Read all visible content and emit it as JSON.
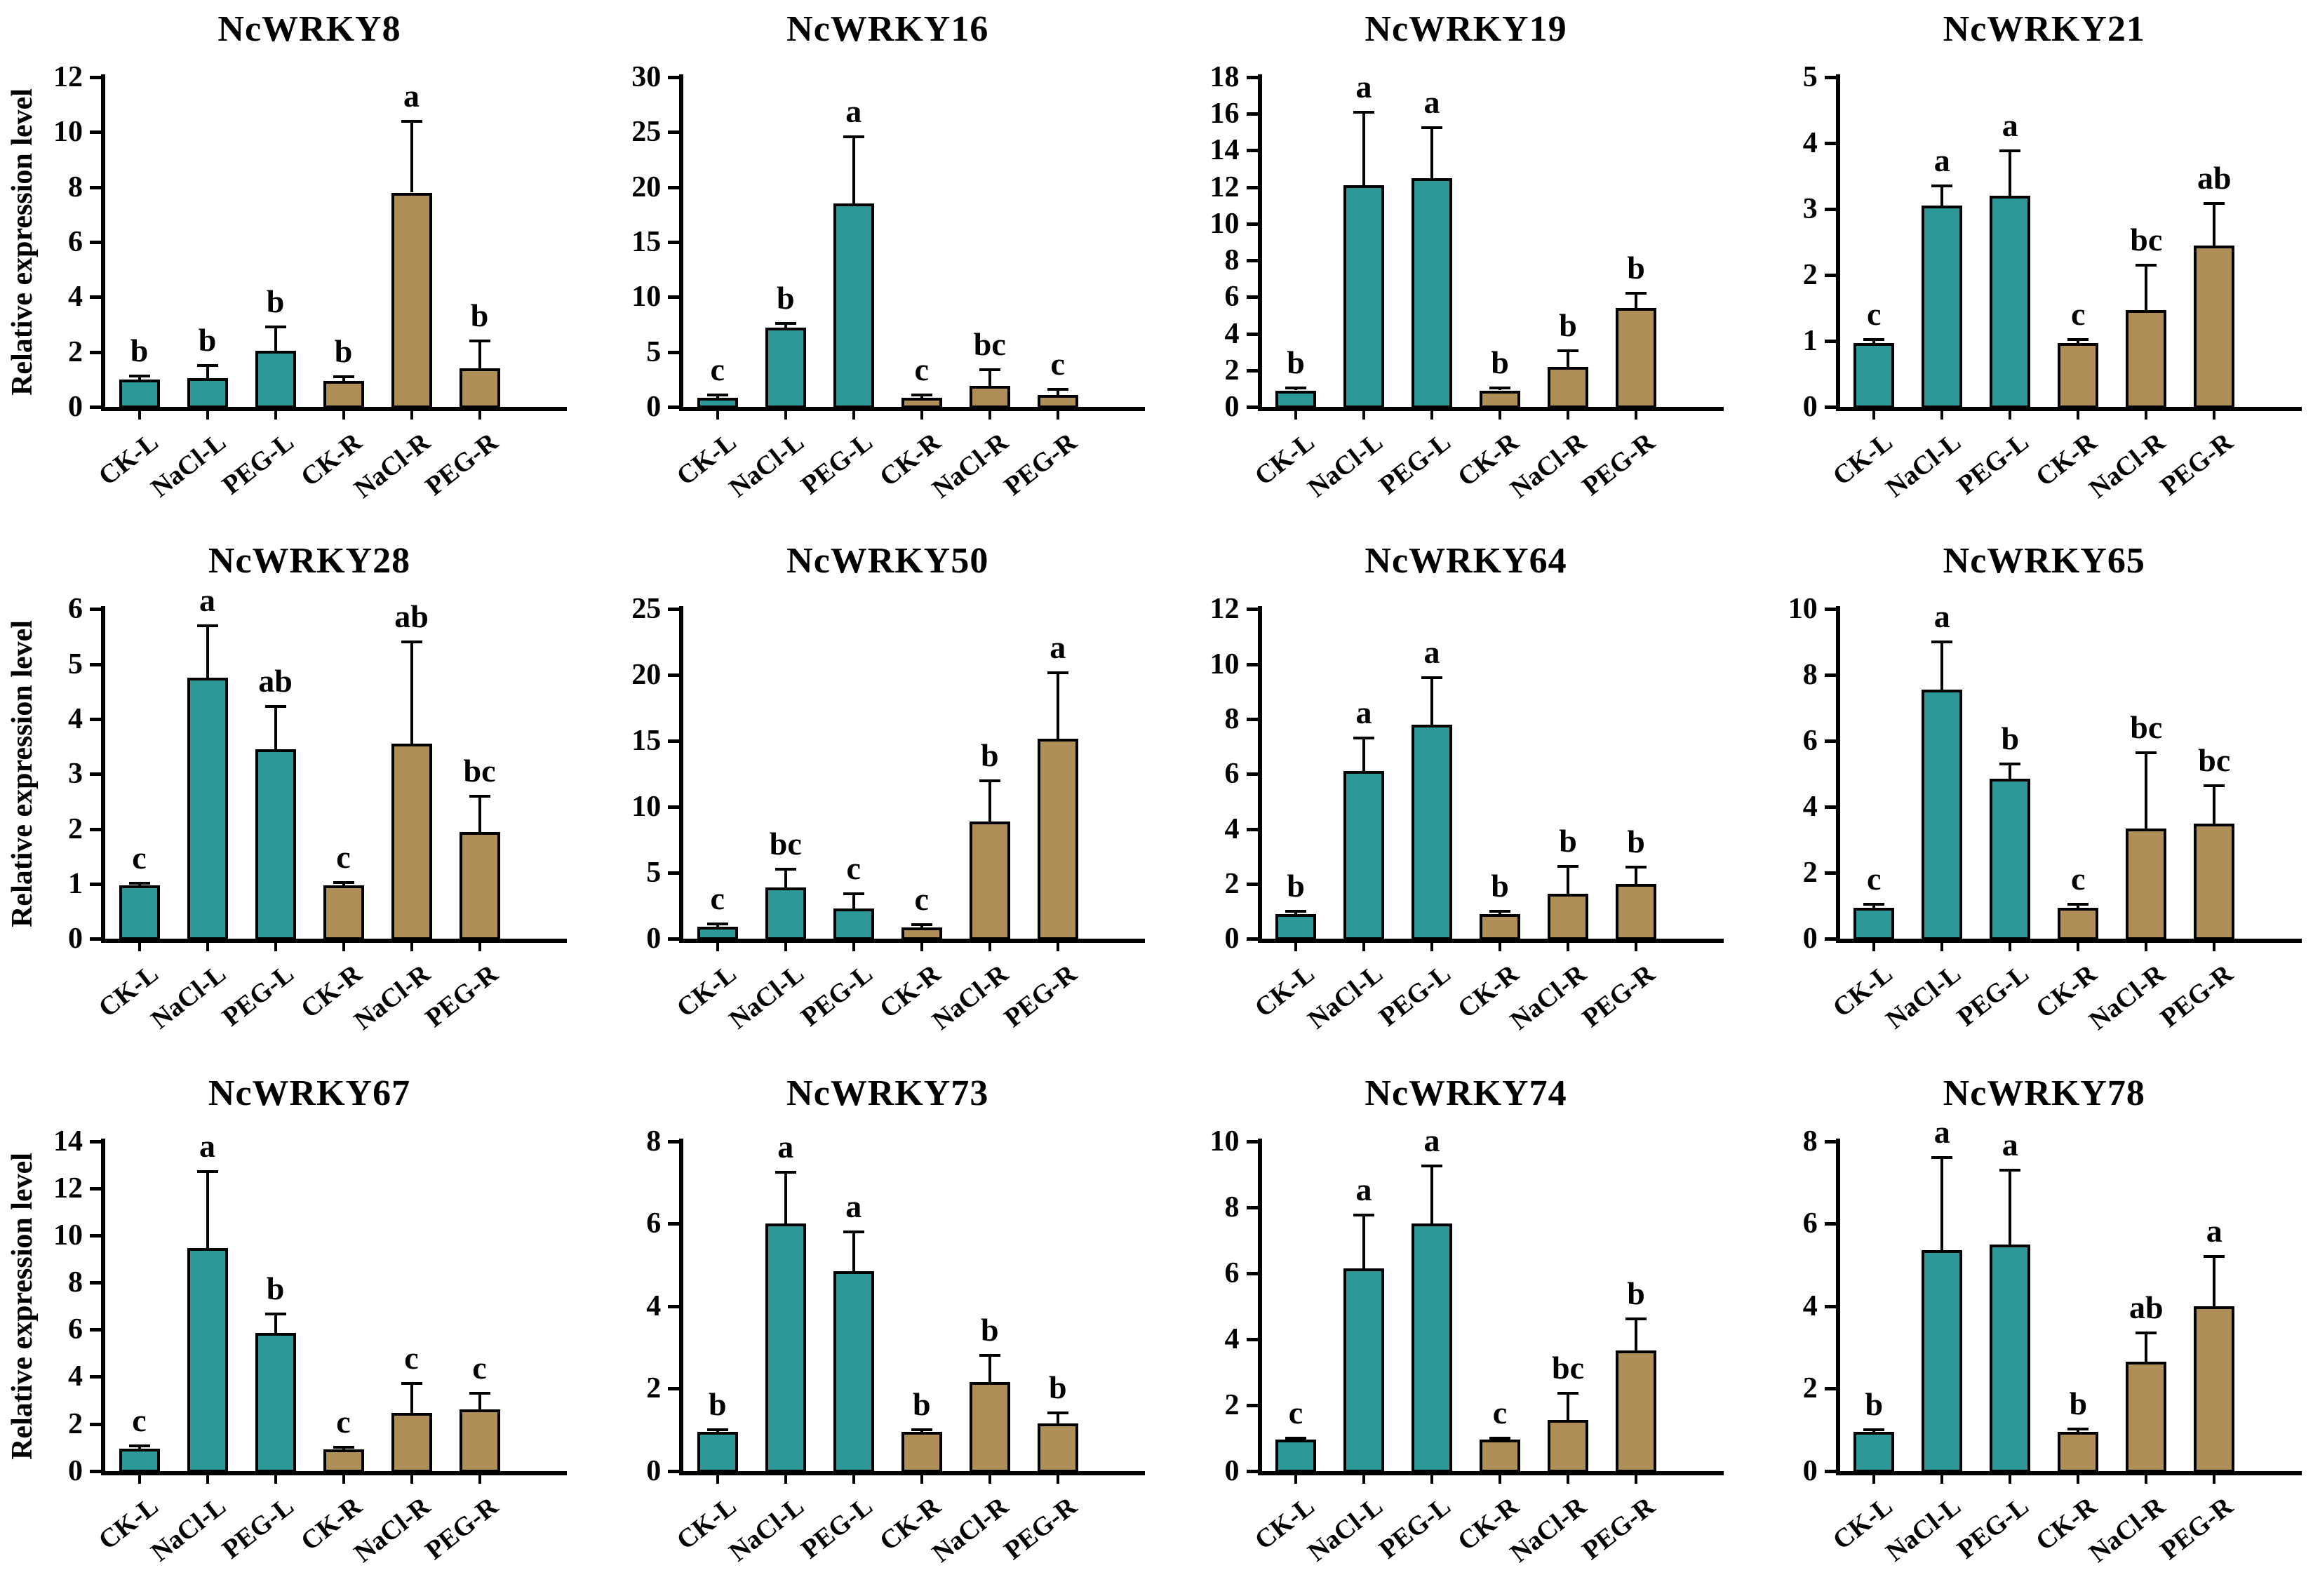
{
  "figure": {
    "y_axis_label": "Relative expression level",
    "categories": [
      "CK-L",
      "NaCl-L",
      "PEG-L",
      "CK-R",
      "NaCl-R",
      "PEG-R"
    ],
    "colors": {
      "leaf_bar": "#2E9898",
      "root_bar": "#B08E58",
      "axis": "#000000",
      "background": "#FFFFFF"
    },
    "bar_groups": [
      "leaf",
      "leaf",
      "leaf",
      "root",
      "root",
      "root"
    ],
    "legend": "none",
    "grid_lines": "off"
  },
  "chart_data": [
    {
      "type": "bar",
      "title": "NcWRKY8",
      "ylim": [
        0,
        12
      ],
      "yticks": [
        0,
        2,
        4,
        6,
        8,
        10,
        12
      ],
      "show_ylabel": true,
      "xlabel": "",
      "ylabel": "Relative expression level",
      "categories": [
        "CK-L",
        "NaCl-L",
        "PEG-L",
        "CK-R",
        "NaCl-R",
        "PEG-R"
      ],
      "values": [
        1.0,
        1.05,
        2.05,
        0.95,
        7.8,
        1.4
      ],
      "errors": [
        0.12,
        0.45,
        0.85,
        0.15,
        2.6,
        1.0
      ],
      "letters": [
        "b",
        "b",
        "b",
        "b",
        "a",
        "b"
      ]
    },
    {
      "type": "bar",
      "title": "NcWRKY16",
      "ylim": [
        0,
        30
      ],
      "yticks": [
        0,
        5,
        10,
        15,
        20,
        25,
        30
      ],
      "show_ylabel": false,
      "xlabel": "",
      "ylabel": "",
      "categories": [
        "CK-L",
        "NaCl-L",
        "PEG-L",
        "CK-R",
        "NaCl-R",
        "PEG-R"
      ],
      "values": [
        0.8,
        7.2,
        18.5,
        0.8,
        1.9,
        1.1
      ],
      "errors": [
        0.3,
        0.4,
        6.1,
        0.3,
        1.5,
        0.5
      ],
      "letters": [
        "c",
        "b",
        "a",
        "c",
        "bc",
        "c"
      ]
    },
    {
      "type": "bar",
      "title": "NcWRKY19",
      "ylim": [
        0,
        18
      ],
      "yticks": [
        0,
        2,
        4,
        6,
        8,
        10,
        12,
        14,
        16,
        18
      ],
      "show_ylabel": false,
      "xlabel": "",
      "ylabel": "",
      "categories": [
        "CK-L",
        "NaCl-L",
        "PEG-L",
        "CK-R",
        "NaCl-R",
        "PEG-R"
      ],
      "values": [
        0.9,
        12.1,
        12.5,
        0.9,
        2.2,
        5.4
      ],
      "errors": [
        0.15,
        4.0,
        2.75,
        0.12,
        0.85,
        0.8
      ],
      "letters": [
        "b",
        "a",
        "a",
        "b",
        "b",
        "b"
      ]
    },
    {
      "type": "bar",
      "title": "NcWRKY21",
      "ylim": [
        0,
        5
      ],
      "yticks": [
        0,
        1,
        2,
        3,
        4,
        5
      ],
      "show_ylabel": false,
      "xlabel": "",
      "ylabel": "",
      "categories": [
        "CK-L",
        "NaCl-L",
        "PEG-L",
        "CK-R",
        "NaCl-R",
        "PEG-R"
      ],
      "values": [
        0.97,
        3.05,
        3.2,
        0.97,
        1.47,
        2.45
      ],
      "errors": [
        0.05,
        0.3,
        0.68,
        0.05,
        0.68,
        0.63
      ],
      "letters": [
        "c",
        "a",
        "a",
        "c",
        "bc",
        "ab"
      ]
    },
    {
      "type": "bar",
      "title": "NcWRKY28",
      "ylim": [
        0,
        6
      ],
      "yticks": [
        0,
        1,
        2,
        3,
        4,
        5,
        6
      ],
      "show_ylabel": true,
      "xlabel": "",
      "ylabel": "Relative expression level",
      "categories": [
        "CK-L",
        "NaCl-L",
        "PEG-L",
        "CK-R",
        "NaCl-R",
        "PEG-R"
      ],
      "values": [
        0.97,
        4.75,
        3.45,
        0.97,
        3.55,
        1.95
      ],
      "errors": [
        0.04,
        0.95,
        0.78,
        0.05,
        1.85,
        0.65
      ],
      "letters": [
        "c",
        "a",
        "ab",
        "c",
        "ab",
        "bc"
      ]
    },
    {
      "type": "bar",
      "title": "NcWRKY50",
      "ylim": [
        0,
        25
      ],
      "yticks": [
        0,
        5,
        10,
        15,
        20,
        25
      ],
      "show_ylabel": false,
      "xlabel": "",
      "ylabel": "",
      "categories": [
        "CK-L",
        "NaCl-L",
        "PEG-L",
        "CK-R",
        "NaCl-R",
        "PEG-R"
      ],
      "values": [
        0.9,
        3.9,
        2.3,
        0.85,
        8.9,
        15.2
      ],
      "errors": [
        0.25,
        1.4,
        1.1,
        0.25,
        3.1,
        5.0
      ],
      "letters": [
        "c",
        "bc",
        "c",
        "c",
        "b",
        "a"
      ]
    },
    {
      "type": "bar",
      "title": "NcWRKY64",
      "ylim": [
        0,
        12
      ],
      "yticks": [
        0,
        2,
        4,
        6,
        8,
        10,
        12
      ],
      "show_ylabel": false,
      "xlabel": "",
      "ylabel": "",
      "categories": [
        "CK-L",
        "NaCl-L",
        "PEG-L",
        "CK-R",
        "NaCl-R",
        "PEG-R"
      ],
      "values": [
        0.9,
        6.1,
        7.8,
        0.9,
        1.65,
        2.0
      ],
      "errors": [
        0.1,
        1.2,
        1.7,
        0.1,
        1.0,
        0.6
      ],
      "letters": [
        "b",
        "a",
        "a",
        "b",
        "b",
        "b"
      ]
    },
    {
      "type": "bar",
      "title": "NcWRKY65",
      "ylim": [
        0,
        10
      ],
      "yticks": [
        0,
        2,
        4,
        6,
        8,
        10
      ],
      "show_ylabel": false,
      "xlabel": "",
      "ylabel": "",
      "categories": [
        "CK-L",
        "NaCl-L",
        "PEG-L",
        "CK-R",
        "NaCl-R",
        "PEG-R"
      ],
      "values": [
        0.95,
        7.55,
        4.85,
        0.95,
        3.35,
        3.5
      ],
      "errors": [
        0.1,
        1.45,
        0.45,
        0.1,
        2.3,
        1.15
      ],
      "letters": [
        "c",
        "a",
        "b",
        "c",
        "bc",
        "bc"
      ]
    },
    {
      "type": "bar",
      "title": "NcWRKY67",
      "ylim": [
        0,
        14
      ],
      "yticks": [
        0,
        2,
        4,
        6,
        8,
        10,
        12,
        14
      ],
      "show_ylabel": true,
      "xlabel": "",
      "ylabel": "Relative expression level",
      "categories": [
        "CK-L",
        "NaCl-L",
        "PEG-L",
        "CK-R",
        "NaCl-R",
        "PEG-R"
      ],
      "values": [
        0.95,
        9.45,
        5.85,
        0.9,
        2.45,
        2.6
      ],
      "errors": [
        0.1,
        3.25,
        0.8,
        0.1,
        1.25,
        0.7
      ],
      "letters": [
        "c",
        "a",
        "b",
        "c",
        "c",
        "c"
      ]
    },
    {
      "type": "bar",
      "title": "NcWRKY73",
      "ylim": [
        0,
        8
      ],
      "yticks": [
        0,
        2,
        4,
        6,
        8
      ],
      "show_ylabel": false,
      "xlabel": "",
      "ylabel": "",
      "categories": [
        "CK-L",
        "NaCl-L",
        "PEG-L",
        "CK-R",
        "NaCl-R",
        "PEG-R"
      ],
      "values": [
        0.95,
        6.0,
        4.85,
        0.95,
        2.15,
        1.15
      ],
      "errors": [
        0.05,
        1.25,
        0.95,
        0.05,
        0.65,
        0.25
      ],
      "letters": [
        "b",
        "a",
        "a",
        "b",
        "b",
        "b"
      ]
    },
    {
      "type": "bar",
      "title": "NcWRKY74",
      "ylim": [
        0,
        10
      ],
      "yticks": [
        0,
        2,
        4,
        6,
        8,
        10
      ],
      "show_ylabel": false,
      "xlabel": "",
      "ylabel": "",
      "categories": [
        "CK-L",
        "NaCl-L",
        "PEG-L",
        "CK-R",
        "NaCl-R",
        "PEG-R"
      ],
      "values": [
        0.95,
        6.15,
        7.5,
        0.95,
        1.55,
        3.65
      ],
      "errors": [
        0.05,
        1.6,
        1.75,
        0.05,
        0.8,
        0.95
      ],
      "letters": [
        "c",
        "a",
        "a",
        "c",
        "bc",
        "b"
      ]
    },
    {
      "type": "bar",
      "title": "NcWRKY78",
      "ylim": [
        0,
        8
      ],
      "yticks": [
        0,
        2,
        4,
        6,
        8
      ],
      "show_ylabel": false,
      "xlabel": "",
      "ylabel": "",
      "categories": [
        "CK-L",
        "NaCl-L",
        "PEG-L",
        "CK-R",
        "NaCl-R",
        "PEG-R"
      ],
      "values": [
        0.95,
        5.35,
        5.5,
        0.95,
        2.65,
        4.0
      ],
      "errors": [
        0.05,
        2.25,
        1.8,
        0.07,
        0.7,
        1.2
      ],
      "letters": [
        "b",
        "a",
        "a",
        "b",
        "ab",
        "a"
      ]
    }
  ]
}
